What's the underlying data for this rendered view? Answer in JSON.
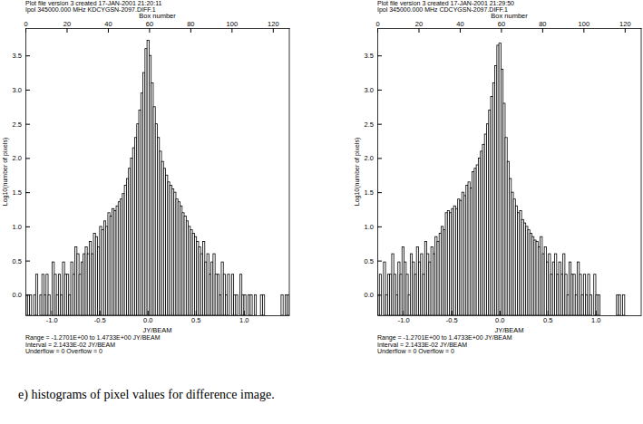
{
  "caption": "e) histograms of pixel values for difference image.",
  "chart_data": [
    {
      "type": "histogram",
      "header_lines": [
        "Plot file version 3 created 17-JAN-2001 21:20:11",
        "Ipol 345000.000 MHz KDCYGSN-2097.DIFF.1"
      ],
      "x2label": "Box number",
      "xlabel": "JY/BEAM",
      "ylabel": "Log10(number of pixels)",
      "footer_lines": [
        "Range = -1.2701E+00 to 1.4733E+00 JY/BEAM",
        "Interval = 2.1433E-02 JY/BEAM",
        "Underflow = 0  Overflow = 0"
      ],
      "color": "#000000",
      "xlim": [
        -1.2701,
        1.4733
      ],
      "xticks": [
        {
          "value": -1.0,
          "label": "-1.0"
        },
        {
          "value": -0.5,
          "label": "-0.5"
        },
        {
          "value": 0.0,
          "label": "0.0"
        },
        {
          "value": 0.5,
          "label": "0.5"
        },
        {
          "value": 1.0,
          "label": "1.0"
        }
      ],
      "x2lim": [
        0,
        128
      ],
      "x2ticks": [
        0,
        20,
        40,
        60,
        80,
        100,
        120
      ],
      "ylim": [
        -0.3,
        3.9
      ],
      "yticks": [
        {
          "value": 0.0,
          "label": "0.0"
        },
        {
          "value": 0.5,
          "label": "0.5"
        },
        {
          "value": 1.0,
          "label": "1.0"
        },
        {
          "value": 1.5,
          "label": "1.5"
        },
        {
          "value": 2.0,
          "label": "2.0"
        },
        {
          "value": 2.5,
          "label": "2.5"
        },
        {
          "value": 3.0,
          "label": "3.0"
        },
        {
          "value": 3.5,
          "label": "3.5"
        }
      ],
      "bins": [
        -1.2701,
        -1.2487,
        -1.2272,
        -1.2058,
        -1.1844,
        -1.1629,
        -1.1415,
        -1.1201,
        -1.0986,
        -1.0772,
        -1.0558,
        -1.0343,
        -1.0129,
        -0.9915,
        -0.97,
        -0.9486,
        -0.9272,
        -0.9057,
        -0.8843,
        -0.8629,
        -0.8414,
        -0.82,
        -0.7986,
        -0.7771,
        -0.7557,
        -0.7343,
        -0.7128,
        -0.6914,
        -0.67,
        -0.6485,
        -0.6271,
        -0.6057,
        -0.5842,
        -0.5628,
        -0.5414,
        -0.5199,
        -0.4985,
        -0.4771,
        -0.4556,
        -0.4342,
        -0.4128,
        -0.3913,
        -0.3699,
        -0.3485,
        -0.327,
        -0.3056,
        -0.2842,
        -0.2627,
        -0.2413,
        -0.2199,
        -0.1984,
        -0.177,
        -0.1556,
        -0.1342,
        -0.1127,
        -0.0913,
        -0.0699,
        -0.0484,
        -0.027,
        -0.0056,
        0.0159,
        0.0373,
        0.0587,
        0.0802,
        0.1016,
        0.123,
        0.1445,
        0.1659,
        0.1873,
        0.2088,
        0.2302,
        0.2516,
        0.2731,
        0.2945,
        0.3159,
        0.3374,
        0.3588,
        0.3802,
        0.4017,
        0.4231,
        0.4445,
        0.466,
        0.4874,
        0.5088,
        0.5303,
        0.5517,
        0.5731,
        0.5946,
        0.616,
        0.6374,
        0.6589,
        0.6803,
        0.7017,
        0.7232,
        0.7446,
        0.766,
        0.7875,
        0.8089,
        0.8303,
        0.8518,
        0.8732,
        0.8946,
        0.9161,
        0.9375,
        0.9589,
        0.9804,
        1.0018,
        1.0232,
        1.0447,
        1.0661,
        1.0875,
        1.109,
        1.1304,
        1.1518,
        1.1733,
        1.1947,
        1.2161,
        1.2376,
        1.259,
        1.2804,
        1.3019,
        1.3233,
        1.3447,
        1.3662,
        1.3876,
        1.409,
        1.4305,
        1.4519,
        1.4733
      ],
      "values": [
        0,
        0,
        0,
        null,
        0,
        0.3,
        null,
        0,
        0.3,
        0,
        0.3,
        0,
        null,
        0.48,
        0.3,
        0,
        0.3,
        0,
        0.48,
        0.3,
        0.3,
        0,
        0.48,
        0.3,
        0.7,
        0.6,
        0.3,
        0.48,
        0.6,
        0.7,
        0.6,
        0.78,
        0.6,
        0.9,
        0.85,
        0.7,
        1.0,
        0.95,
        1.08,
        1.0,
        1.2,
        1.15,
        1.26,
        1.23,
        1.3,
        1.36,
        1.4,
        1.48,
        1.6,
        1.7,
        1.85,
        2.0,
        2.15,
        2.3,
        2.5,
        2.7,
        2.95,
        3.25,
        3.6,
        3.72,
        3.5,
        3.1,
        2.75,
        2.5,
        2.3,
        2.1,
        1.95,
        1.85,
        1.75,
        1.65,
        1.6,
        1.55,
        1.5,
        1.4,
        1.36,
        1.3,
        1.2,
        1.15,
        1.08,
        1.0,
        0.95,
        0.9,
        0.85,
        0.78,
        0.7,
        0.6,
        0.78,
        0.48,
        0.6,
        0.3,
        0.48,
        0.6,
        0.3,
        0.3,
        0,
        0.48,
        0.3,
        0,
        0.3,
        null,
        0.3,
        0,
        0,
        null,
        0.3,
        0,
        0,
        null,
        0,
        0,
        null,
        0,
        null,
        null,
        0,
        0,
        null,
        null,
        null,
        null,
        null,
        null,
        null,
        null,
        0,
        null,
        0,
        0
      ]
    },
    {
      "type": "histogram",
      "header_lines": [
        "Plot file version 3 created 17-JAN-2001 21:29:50",
        "Ipol 345000.000 MHz CDCYGSN-2097.DIFF.1"
      ],
      "x2label": "Box number",
      "xlabel": "JY/BEAM",
      "ylabel": "Log10(number of pixels)",
      "footer_lines": [
        "Range = -1.2701E+00 to 1.4733E+00 JY/BEAM",
        "Interval = 2.1433E-02 JY/BEAM",
        "Underflow = 0  Overflow = 0"
      ],
      "color": "#000000",
      "xlim": [
        -1.2701,
        1.4733
      ],
      "xticks": [
        {
          "value": -1.0,
          "label": "-1.0"
        },
        {
          "value": -0.5,
          "label": "-0.5"
        },
        {
          "value": 0.0,
          "label": "0.0"
        },
        {
          "value": 0.5,
          "label": "0.5"
        },
        {
          "value": 1.0,
          "label": "1.0"
        }
      ],
      "x2lim": [
        0,
        128
      ],
      "x2ticks": [
        0,
        20,
        40,
        60,
        80,
        100,
        120
      ],
      "ylim": [
        -0.3,
        3.9
      ],
      "yticks": [
        {
          "value": 0.0,
          "label": "0.0"
        },
        {
          "value": 0.5,
          "label": "0.5"
        },
        {
          "value": 1.0,
          "label": "1.0"
        },
        {
          "value": 1.5,
          "label": "1.5"
        },
        {
          "value": 2.0,
          "label": "2.0"
        },
        {
          "value": 2.5,
          "label": "2.5"
        },
        {
          "value": 3.0,
          "label": "3.0"
        },
        {
          "value": 3.5,
          "label": "3.5"
        }
      ],
      "bins": [
        -1.2701,
        -1.2487,
        -1.2272,
        -1.2058,
        -1.1844,
        -1.1629,
        -1.1415,
        -1.1201,
        -1.0986,
        -1.0772,
        -1.0558,
        -1.0343,
        -1.0129,
        -0.9915,
        -0.97,
        -0.9486,
        -0.9272,
        -0.9057,
        -0.8843,
        -0.8629,
        -0.8414,
        -0.82,
        -0.7986,
        -0.7771,
        -0.7557,
        -0.7343,
        -0.7128,
        -0.6914,
        -0.67,
        -0.6485,
        -0.6271,
        -0.6057,
        -0.5842,
        -0.5628,
        -0.5414,
        -0.5199,
        -0.4985,
        -0.4771,
        -0.4556,
        -0.4342,
        -0.4128,
        -0.3913,
        -0.3699,
        -0.3485,
        -0.327,
        -0.3056,
        -0.2842,
        -0.2627,
        -0.2413,
        -0.2199,
        -0.1984,
        -0.177,
        -0.1556,
        -0.1342,
        -0.1127,
        -0.0913,
        -0.0699,
        -0.0484,
        -0.027,
        -0.0056,
        0.0159,
        0.0373,
        0.0587,
        0.0802,
        0.1016,
        0.123,
        0.1445,
        0.1659,
        0.1873,
        0.2088,
        0.2302,
        0.2516,
        0.2731,
        0.2945,
        0.3159,
        0.3374,
        0.3588,
        0.3802,
        0.4017,
        0.4231,
        0.4445,
        0.466,
        0.4874,
        0.5088,
        0.5303,
        0.5517,
        0.5731,
        0.5946,
        0.616,
        0.6374,
        0.6589,
        0.6803,
        0.7017,
        0.7232,
        0.7446,
        0.766,
        0.7875,
        0.8089,
        0.8303,
        0.8518,
        0.8732,
        0.8946,
        0.9161,
        0.9375,
        0.9589,
        0.9804,
        1.0018,
        1.0232,
        1.0447,
        1.0661,
        1.0875,
        1.109,
        1.1304,
        1.1518,
        1.1733,
        1.1947,
        1.2161,
        1.2376,
        1.259,
        1.2804,
        1.3019,
        1.3233,
        1.3447,
        1.3662,
        1.3876,
        1.409,
        1.4305,
        1.4519,
        1.4733
      ],
      "values": [
        0,
        0.3,
        null,
        0.48,
        0,
        0.3,
        0.3,
        0.6,
        0.3,
        0,
        0.48,
        0.3,
        0.7,
        0.48,
        0.3,
        0,
        0.6,
        0.48,
        0.3,
        0.7,
        0.48,
        0.6,
        0.3,
        0.78,
        0.6,
        0.48,
        0.7,
        0.6,
        0.85,
        0.78,
        0.9,
        1.0,
        0.95,
        1.2,
        1.23,
        1.2,
        1.26,
        1.3,
        1.26,
        1.4,
        1.38,
        1.5,
        1.45,
        1.6,
        1.65,
        1.56,
        1.8,
        1.85,
        1.9,
        2.0,
        2.1,
        2.2,
        2.35,
        2.5,
        2.7,
        2.9,
        3.1,
        3.35,
        3.65,
        3.68,
        3.3,
        2.8,
        2.3,
        1.95,
        1.7,
        1.5,
        1.4,
        1.3,
        1.2,
        1.23,
        1.1,
        1.05,
        1.0,
        0.95,
        0.9,
        0.85,
        0.8,
        0.78,
        0.7,
        0.85,
        0.6,
        0.7,
        0.48,
        0.6,
        0.3,
        0.48,
        0.6,
        0.3,
        0.48,
        0.3,
        0.6,
        0.3,
        0,
        0.48,
        0.3,
        0.3,
        0,
        0.48,
        0.3,
        0,
        0.3,
        0,
        0.3,
        0,
        null,
        0.3,
        0,
        0,
        null,
        null,
        null,
        null,
        null,
        null,
        null,
        null,
        0,
        0,
        null,
        0,
        null,
        null,
        null,
        null,
        null,
        null,
        null,
        null
      ]
    }
  ]
}
